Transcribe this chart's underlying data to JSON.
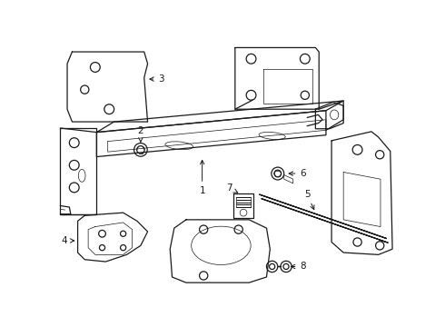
{
  "bg_color": "#ffffff",
  "line_color": "#1a1a1a",
  "lw": 0.9,
  "thin_lw": 0.5,
  "label_fs": 7.5
}
